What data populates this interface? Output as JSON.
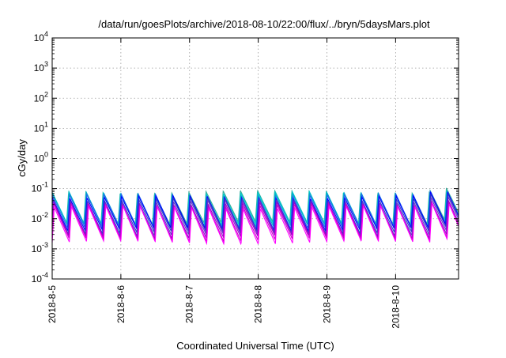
{
  "chart_data": {
    "type": "line",
    "title": "/data/run/goesPlots/archive/2018-08-10/22:00/flux/../bryn/5daysMars.plot",
    "xlabel": "Coordinated Universal Time (UTC)",
    "ylabel": "cGy/day",
    "yscale": "log",
    "grid": true,
    "xlim": [
      "2018-08-05T00:00",
      "2018-08-10T22:00"
    ],
    "ylim": [
      0.0001,
      10000
    ],
    "x_ticks": [
      "2018-8-5",
      "2018-8-6",
      "2018-8-7",
      "2018-8-8",
      "2018-8-9",
      "2018-8-10"
    ],
    "y_ticks": [
      {
        "base": "10",
        "exp": "-4"
      },
      {
        "base": "10",
        "exp": "-3"
      },
      {
        "base": "10",
        "exp": "-2"
      },
      {
        "base": "10",
        "exp": "-1"
      },
      {
        "base": "10",
        "exp": "0"
      },
      {
        "base": "10",
        "exp": "1"
      },
      {
        "base": "10",
        "exp": "2"
      },
      {
        "base": "10",
        "exp": "3"
      },
      {
        "base": "10",
        "exp": "4"
      }
    ],
    "series_colors": [
      "#ff00ff",
      "#cc00cc",
      "#9900cc",
      "#6633cc",
      "#3333cc",
      "#0000ff",
      "#2266ee",
      "#00aacc",
      "#00cccc",
      "#33aa99"
    ],
    "series_peak_values": [
      0.024,
      0.028,
      0.032,
      0.038,
      0.044,
      0.052,
      0.06,
      0.066,
      0.072,
      0.078
    ],
    "series_trough_values": [
      0.0016,
      0.002,
      0.0025,
      0.003,
      0.0036,
      0.0044,
      0.005,
      0.0058,
      0.0065,
      0.0072
    ],
    "oscillation_period_hours": 6,
    "enhanced_interval": {
      "start": "2018-08-10T12:00",
      "end": "2018-08-10T22:00",
      "factor": 1.35
    }
  }
}
